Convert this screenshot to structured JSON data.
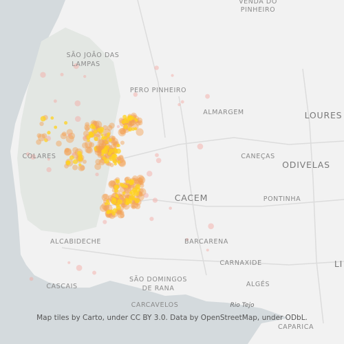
{
  "labels": {
    "venda_line1": "VENDA DO",
    "venda_line2": "PINHEIRO",
    "sao_joao_line1": "SÃO JOÃO DAS",
    "sao_joao_line2": "LAMPAS",
    "pero_pinheiro": "PERO PINHEIRO",
    "almargem": "ALMARGEM",
    "loures": "LOURES",
    "colares": "COLARES",
    "canecas": "CANEÇAS",
    "odivelas": "ODIVELAS",
    "cacem": "CACEM",
    "pontinha": "PONTINHA",
    "alcabideche": "ALCABIDECHE",
    "barcarena": "BARCARENA",
    "carnaxide": "CARNAXIDE",
    "lisboa": "LI",
    "sao_domingos_line1": "SÃO DOMINGOS",
    "sao_domingos_line2": "DE RANA",
    "cascais": "CASCAIS",
    "alges": "ALGÉS",
    "carcavelos": "CARCAVELOS",
    "rio_tejo": "Rio Tejo",
    "caparica": "CAPARICA"
  },
  "attribution": "Map tiles by Carto, under CC BY 3.0. Data by OpenStreetMap, under ODbL."
}
